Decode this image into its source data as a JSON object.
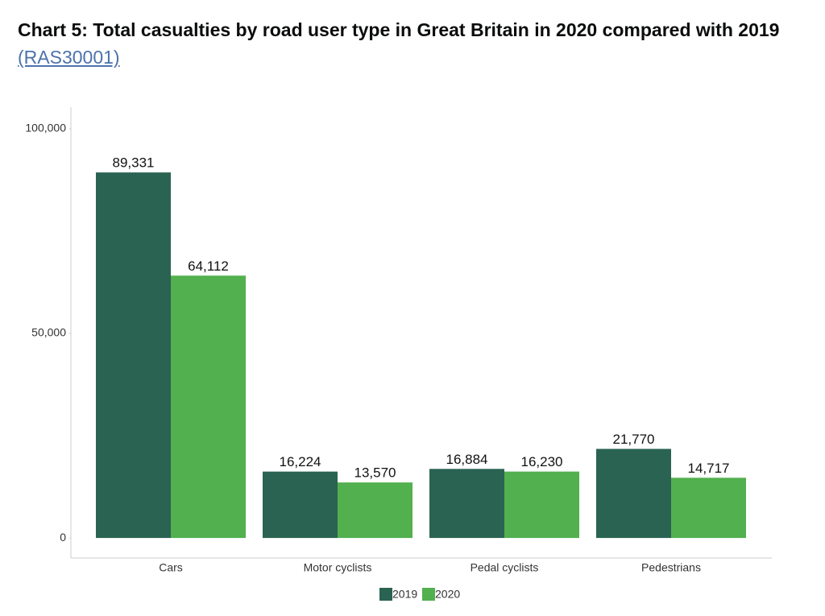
{
  "chart_data": {
    "type": "bar",
    "title": "Chart 5: Total casualties by road user type in Great Britain in 2020 compared with 2019",
    "title_link": "(RAS30001)",
    "categories": [
      "Cars",
      "Motor cyclists",
      "Pedal cyclists",
      "Pedestrians"
    ],
    "series": [
      {
        "name": "2019",
        "color": "#2a6352",
        "values": [
          89331,
          16224,
          16884,
          21770
        ],
        "value_labels": [
          "89,331",
          "16,224",
          "16,884",
          "21,770"
        ]
      },
      {
        "name": "2020",
        "color": "#52b04f",
        "values": [
          64112,
          13570,
          16230,
          14717
        ],
        "value_labels": [
          "64,112",
          "13,570",
          "16,230",
          "14,717"
        ]
      }
    ],
    "ylim": [
      -4900,
      105300
    ],
    "yticks": [
      0,
      {
        "value": 50000,
        "label": "50,000"
      },
      {
        "value": 100000,
        "label": "100,000"
      }
    ],
    "grid": false,
    "legend": "bottom"
  }
}
